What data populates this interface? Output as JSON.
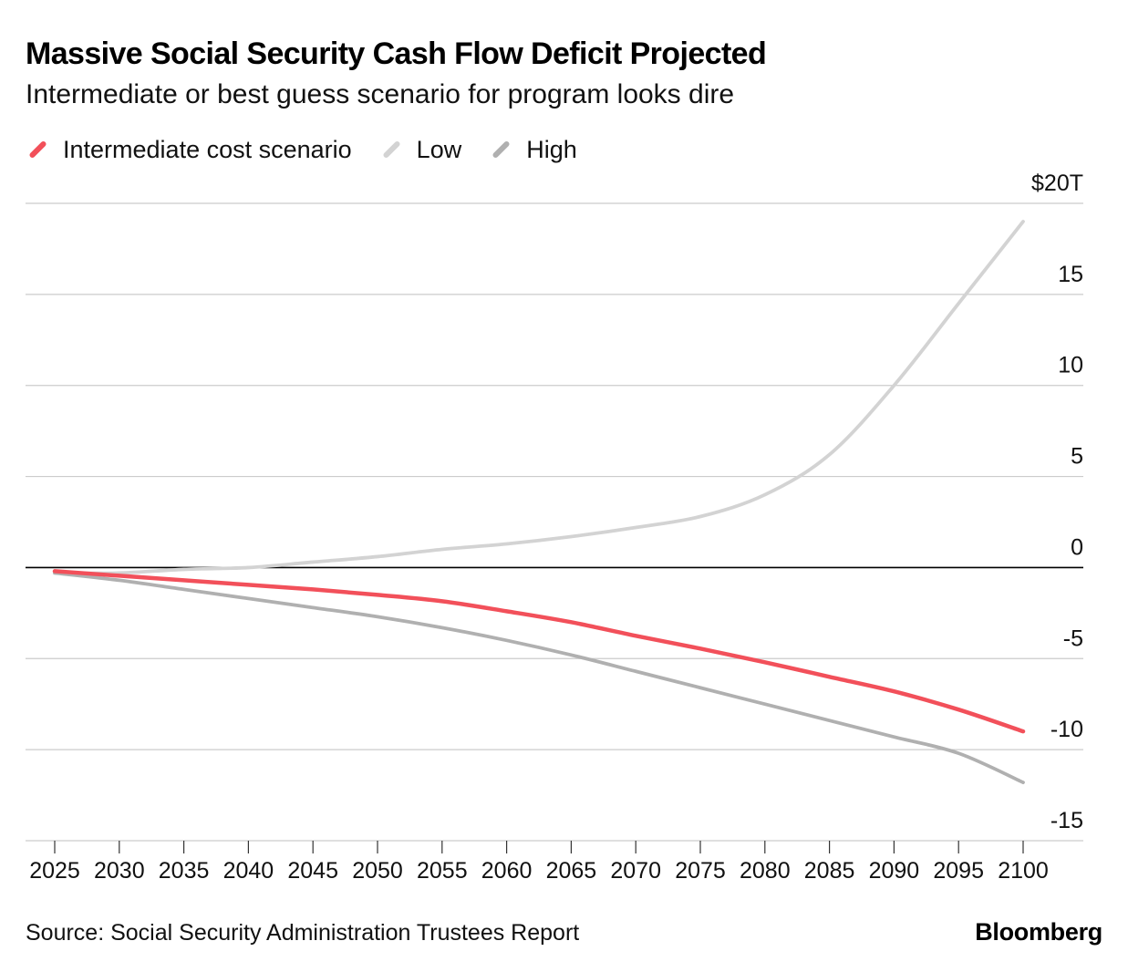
{
  "chart_data": {
    "type": "line",
    "title": "Massive Social Security Cash Flow Deficit Projected",
    "subtitle": "Intermediate or best guess scenario for program looks dire",
    "xlabel": "",
    "ylabel": "",
    "x": [
      2025,
      2030,
      2035,
      2040,
      2045,
      2050,
      2055,
      2060,
      2065,
      2070,
      2075,
      2080,
      2085,
      2090,
      2095,
      2100
    ],
    "x_tick_labels": [
      "2025",
      "2030",
      "2035",
      "2040",
      "2045",
      "2050",
      "2055",
      "2060",
      "2065",
      "2070",
      "2075",
      "2080",
      "2085",
      "2090",
      "2095",
      "2100"
    ],
    "ylim": [
      -15,
      20
    ],
    "y_ticks": [
      20,
      15,
      10,
      5,
      0,
      -5,
      -10,
      -15
    ],
    "y_tick_labels": [
      "$20T",
      "15",
      "10",
      "5",
      "0",
      "-5",
      "-10",
      "-15"
    ],
    "grid": true,
    "legend_position": "top-left",
    "series": [
      {
        "name": "Intermediate cost scenario",
        "color": "#f2505a",
        "values": [
          -0.2,
          -0.45,
          -0.7,
          -0.95,
          -1.2,
          -1.5,
          -1.85,
          -2.4,
          -3.0,
          -3.75,
          -4.45,
          -5.2,
          -6.0,
          -6.8,
          -7.8,
          -9.0
        ]
      },
      {
        "name": "Low",
        "color": "#d3d3d3",
        "values": [
          -0.3,
          -0.3,
          -0.1,
          0.0,
          0.3,
          0.6,
          1.0,
          1.3,
          1.7,
          2.2,
          2.8,
          4.0,
          6.2,
          10.0,
          14.5,
          19.0
        ]
      },
      {
        "name": "High",
        "color": "#b0b0b0",
        "values": [
          -0.3,
          -0.7,
          -1.2,
          -1.7,
          -2.2,
          -2.7,
          -3.3,
          -4.0,
          -4.8,
          -5.7,
          -6.6,
          -7.5,
          -8.4,
          -9.3,
          -10.2,
          -11.8
        ]
      }
    ]
  },
  "footer": {
    "source": "Source: Social Security Administration Trustees Report",
    "brand": "Bloomberg"
  }
}
